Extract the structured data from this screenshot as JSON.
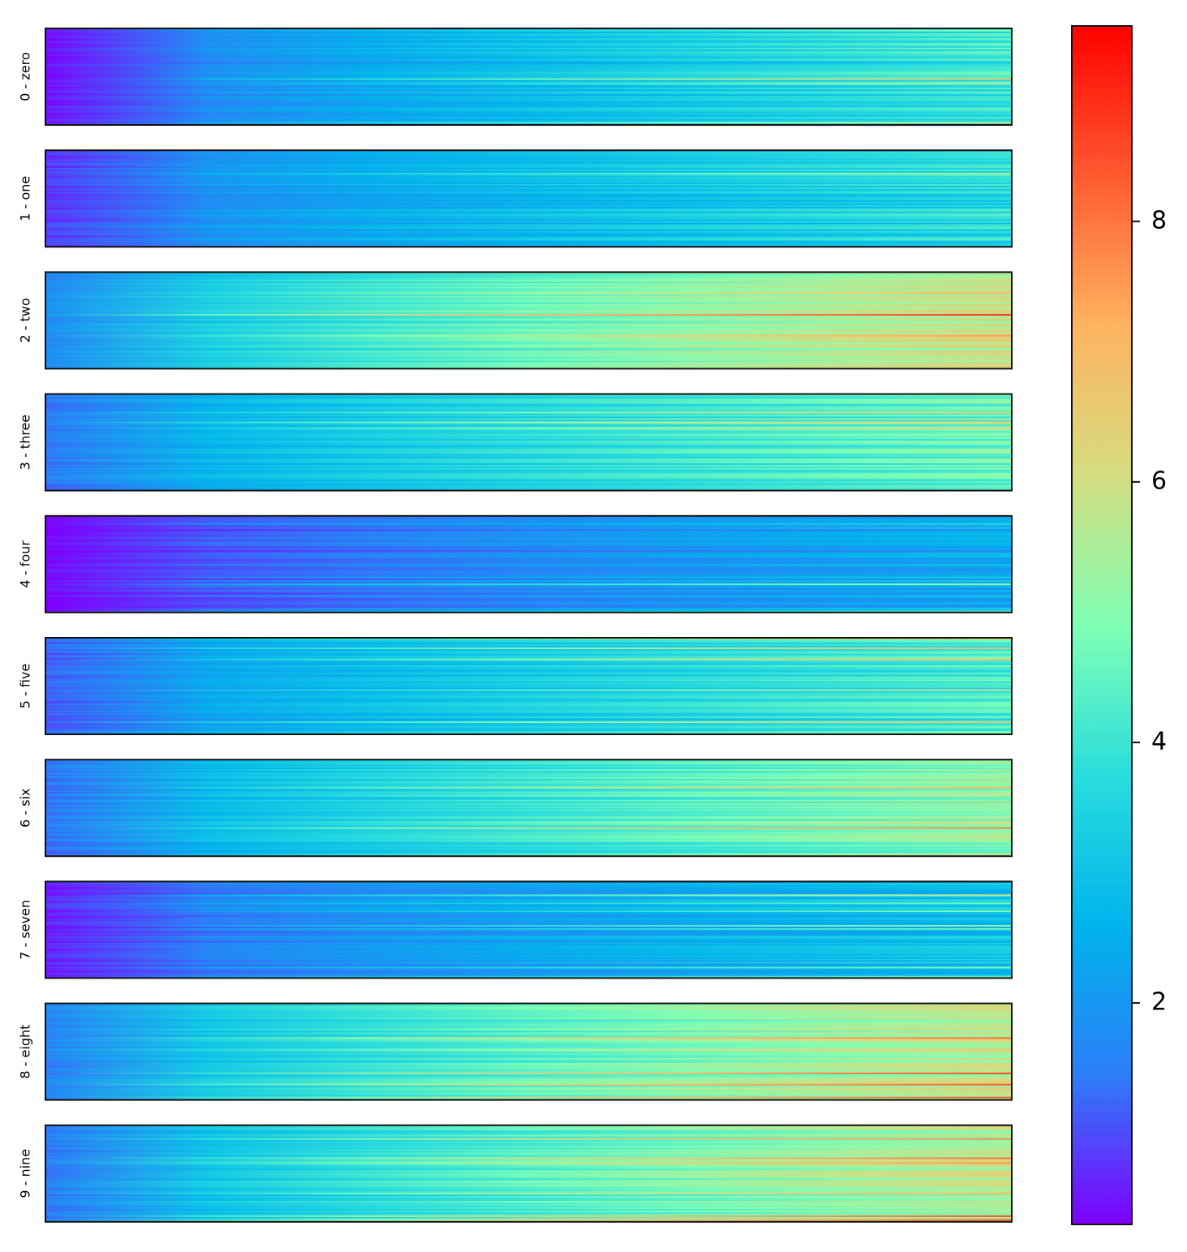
{
  "chart_data": {
    "type": "heatmap",
    "xlabel": "",
    "ylabel": "",
    "grid": false,
    "colormap": "rainbow",
    "colormap_stops": [
      "#7f00ff",
      "#2c7ef7",
      "#00b4ec",
      "#2adddd",
      "#80ffb4",
      "#d4dd80",
      "#ffb360",
      "#ff5a30",
      "#ff0000"
    ],
    "colorbar": {
      "range": [
        0.3,
        9.5
      ],
      "ticks": [
        {
          "value": 2,
          "label": "2"
        },
        {
          "value": 4,
          "label": "4"
        },
        {
          "value": 6,
          "label": "6"
        },
        {
          "value": 8,
          "label": "8"
        }
      ],
      "placement": "right"
    },
    "panels": [
      {
        "label": "0 - zero",
        "value_start": 0.4,
        "value_end": 4.0,
        "rows_shown_red": true
      },
      {
        "label": "1 - one",
        "value_start": 0.8,
        "value_end": 3.6
      },
      {
        "label": "2 - two",
        "value_start": 1.8,
        "value_end": 6.0
      },
      {
        "label": "3 - three",
        "value_start": 1.4,
        "value_end": 4.6
      },
      {
        "label": "4 - four",
        "value_start": 0.3,
        "value_end": 2.6
      },
      {
        "label": "5 - five",
        "value_start": 1.2,
        "value_end": 4.2
      },
      {
        "label": "6 - six",
        "value_start": 1.4,
        "value_end": 5.2
      },
      {
        "label": "7 - seven",
        "value_start": 0.6,
        "value_end": 3.0
      },
      {
        "label": "8 - eight",
        "value_start": 1.6,
        "value_end": 5.8
      },
      {
        "label": "9 - nine",
        "value_start": 1.5,
        "value_end": 5.7
      }
    ]
  }
}
